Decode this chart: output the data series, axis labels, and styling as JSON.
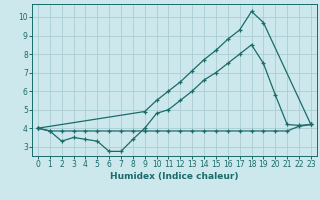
{
  "xlabel": "Humidex (Indice chaleur)",
  "bg_color": "#cce8ec",
  "grid_color": "#aacdd4",
  "line_color": "#1a6b6b",
  "xlim": [
    -0.5,
    23.5
  ],
  "ylim": [
    2.5,
    10.7
  ],
  "xticks": [
    0,
    1,
    2,
    3,
    4,
    5,
    6,
    7,
    8,
    9,
    10,
    11,
    12,
    13,
    14,
    15,
    16,
    17,
    18,
    19,
    20,
    21,
    22,
    23
  ],
  "yticks": [
    3,
    4,
    5,
    6,
    7,
    8,
    9,
    10
  ],
  "line_steep_x": [
    0,
    9,
    10,
    11,
    12,
    13,
    14,
    15,
    16,
    17,
    18,
    19,
    23
  ],
  "line_steep_y": [
    4.0,
    4.9,
    5.5,
    6.0,
    6.5,
    7.1,
    7.7,
    8.2,
    8.8,
    9.3,
    10.3,
    9.7,
    4.2
  ],
  "line_mid_x": [
    0,
    1,
    2,
    3,
    4,
    5,
    6,
    7,
    8,
    9,
    10,
    11,
    12,
    13,
    14,
    15,
    16,
    17,
    18,
    19,
    20,
    21,
    22,
    23
  ],
  "line_mid_y": [
    4.0,
    3.85,
    3.3,
    3.5,
    3.4,
    3.3,
    2.75,
    2.75,
    3.4,
    4.0,
    4.8,
    5.0,
    5.5,
    6.0,
    6.6,
    7.0,
    7.5,
    8.0,
    8.5,
    7.5,
    5.8,
    4.2,
    4.15,
    4.2
  ],
  "line_flat_x": [
    0,
    1,
    2,
    3,
    4,
    5,
    6,
    7,
    8,
    9,
    10,
    11,
    12,
    13,
    14,
    15,
    16,
    17,
    18,
    19,
    20,
    21,
    22,
    23
  ],
  "line_flat_y": [
    4.0,
    3.85,
    3.85,
    3.85,
    3.85,
    3.85,
    3.85,
    3.85,
    3.85,
    3.85,
    3.85,
    3.85,
    3.85,
    3.85,
    3.85,
    3.85,
    3.85,
    3.85,
    3.85,
    3.85,
    3.85,
    3.85,
    4.1,
    4.2
  ]
}
